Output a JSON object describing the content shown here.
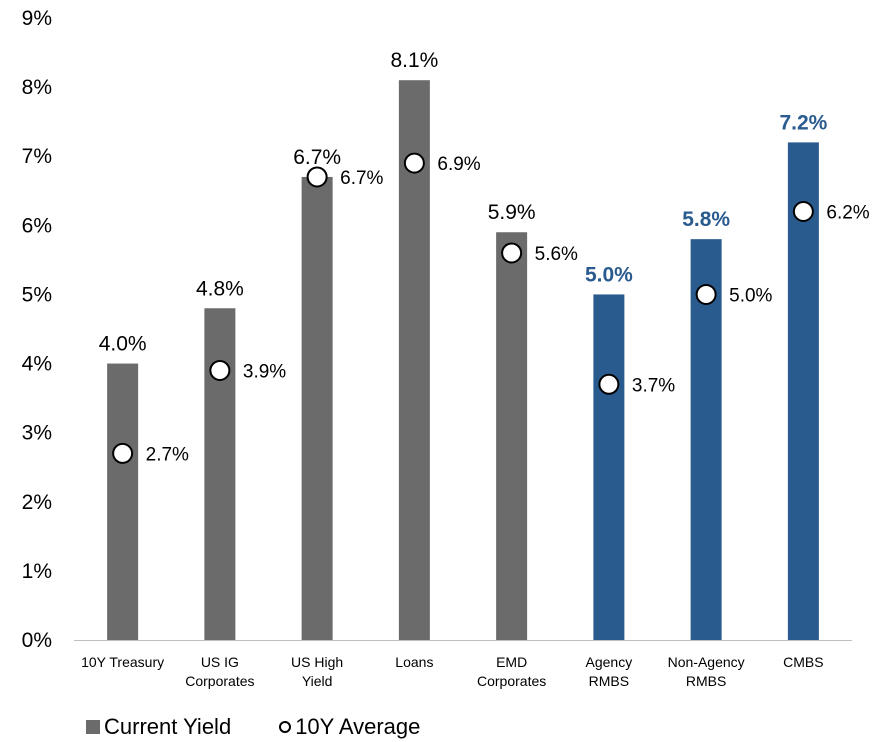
{
  "chart_data": {
    "type": "bar",
    "categories": [
      [
        "10Y Treasury"
      ],
      [
        "US IG",
        "Corporates"
      ],
      [
        "US High",
        "Yield"
      ],
      [
        "Loans"
      ],
      [
        "EMD",
        "Corporates"
      ],
      [
        "Agency",
        "RMBS"
      ],
      [
        "Non-Agency",
        "RMBS"
      ],
      [
        "CMBS"
      ]
    ],
    "series": [
      {
        "name": "Current Yield",
        "values": [
          4.0,
          4.8,
          6.7,
          8.1,
          5.9,
          5.0,
          5.8,
          7.2
        ],
        "labels": [
          "4.0%",
          "4.8%",
          "6.7%",
          "8.1%",
          "5.9%",
          "5.0%",
          "5.8%",
          "7.2%"
        ],
        "colors": [
          "#6b6b6b",
          "#6b6b6b",
          "#6b6b6b",
          "#6b6b6b",
          "#6b6b6b",
          "#2a5b8f",
          "#2a5b8f",
          "#2a5b8f"
        ],
        "label_colors": [
          "#000000",
          "#000000",
          "#000000",
          "#000000",
          "#000000",
          "#2a5b8f",
          "#2a5b8f",
          "#2a5b8f"
        ],
        "label_bold": [
          false,
          false,
          false,
          false,
          false,
          true,
          true,
          true
        ]
      },
      {
        "name": "10Y Average",
        "marker": "circle",
        "values": [
          2.7,
          3.9,
          6.7,
          6.9,
          5.6,
          3.7,
          5.0,
          6.2
        ],
        "labels": [
          "2.7%",
          "3.9%",
          "6.7%",
          "6.9%",
          "5.6%",
          "3.7%",
          "5.0%",
          "6.2%"
        ]
      }
    ],
    "yticks": [
      "0%",
      "1%",
      "2%",
      "3%",
      "4%",
      "5%",
      "6%",
      "7%",
      "8%",
      "9%"
    ],
    "ylim": [
      0,
      9
    ],
    "grid": false,
    "legend_position": "bottom-left"
  },
  "legend": {
    "current_yield": "Current Yield",
    "ten_year_average": "10Y Average"
  }
}
